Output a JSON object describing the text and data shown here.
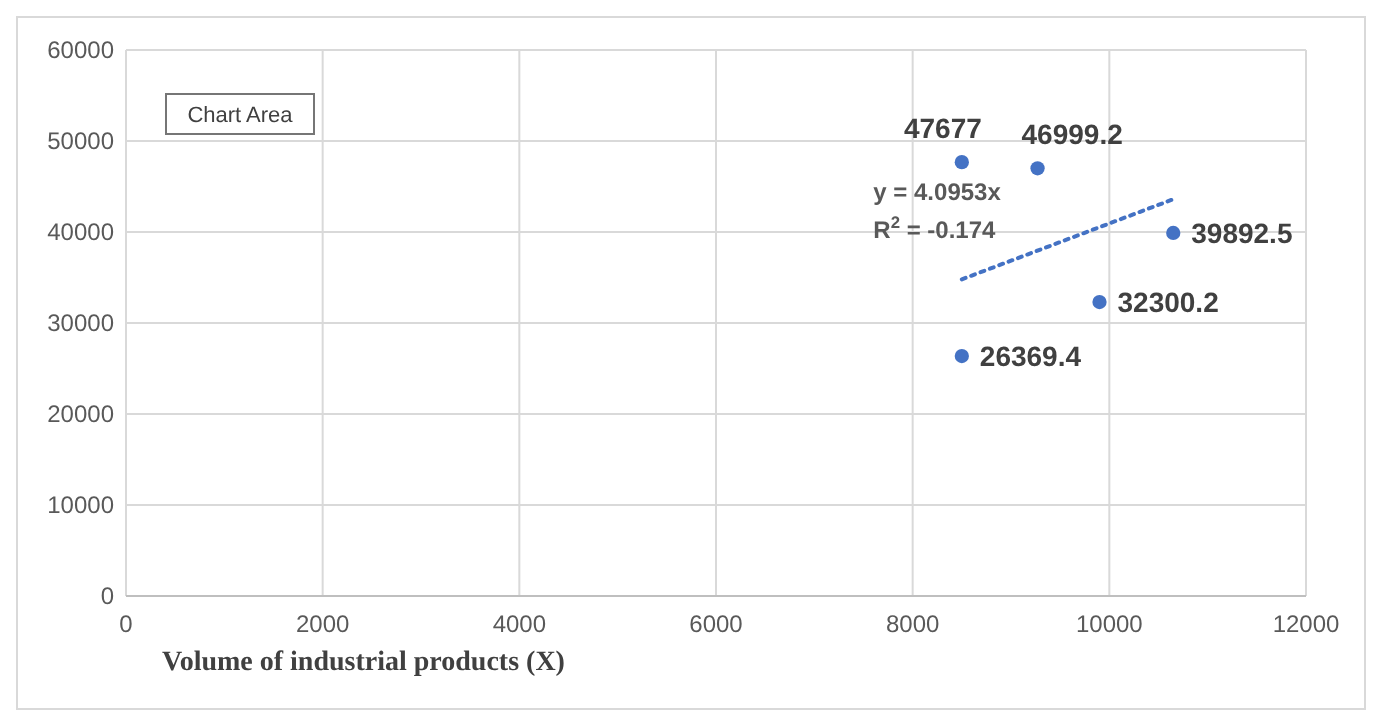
{
  "chart_data": {
    "type": "scatter",
    "xlabel": "Volume of industrial  products (X)",
    "xlim": [
      0,
      12000
    ],
    "xticks": [
      0,
      2000,
      4000,
      6000,
      8000,
      10000,
      12000
    ],
    "ylim": [
      0,
      60000
    ],
    "yticks": [
      0,
      10000,
      20000,
      30000,
      40000,
      50000,
      60000
    ],
    "grid": true,
    "series": [
      {
        "color": "#4472c4",
        "marker": "circle",
        "x": [
          8500,
          9270,
          10650,
          9900,
          8500
        ],
        "values": [
          47677,
          46999.2,
          39892.5,
          32300.2,
          26369.4
        ],
        "value_labels": [
          "47677",
          "46999.2",
          "39892.5",
          "32300.2",
          "26369.4"
        ]
      },
      {
        "type": "line",
        "color": "#4472c4",
        "line_style": "dotted",
        "x": [
          8500,
          10650
        ],
        "values": [
          34800,
          43600
        ]
      }
    ],
    "annotations": [
      "y = 4.0953x",
      "R$^{2}$ = -0.174",
      "Chart Area"
    ]
  }
}
